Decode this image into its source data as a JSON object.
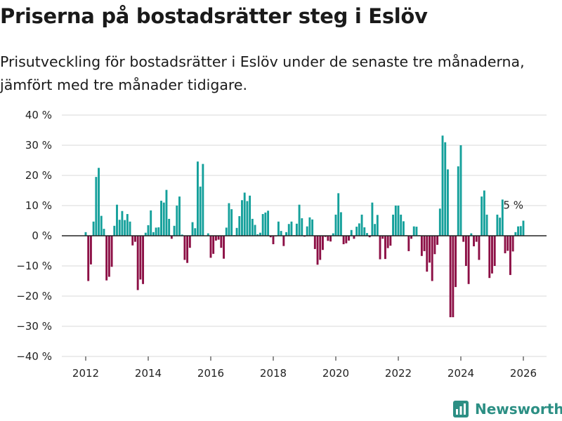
{
  "chart_data": {
    "type": "bar",
    "title": "Priserna på bostadsrätter steg i Eslöv",
    "subtitle": "Prisutveckling för bostadsrätter i Eslöv under de senaste tre månaderna, jämfört med tre månader tidigare.",
    "xlabel": "",
    "ylabel": "",
    "ylim": [
      -40,
      40
    ],
    "yticks": [
      40,
      30,
      20,
      10,
      0,
      -10,
      -20,
      -30,
      -40
    ],
    "ytick_labels": [
      "40 %",
      "30 %",
      "20 %",
      "10 %",
      "0 %",
      "−10 %",
      "−20 %",
      "−30 %",
      "−40 %"
    ],
    "xlim": [
      2011.5,
      2026.5
    ],
    "xticks": [
      2012,
      2014,
      2016,
      2018,
      2020,
      2022,
      2024,
      2026
    ],
    "xtick_labels": [
      "2012",
      "2014",
      "2016",
      "2018",
      "2020",
      "2022",
      "2024",
      "2026"
    ],
    "start": 2012.0,
    "step": 0.08333,
    "values": [
      1.2,
      -15,
      -9.5,
      4.7,
      19.5,
      22.5,
      6.6,
      2.3,
      -14.8,
      -13.6,
      -10.3,
      3.3,
      10.3,
      5.3,
      8.2,
      5.2,
      7.2,
      4.7,
      -3.2,
      -2.0,
      -18,
      -14.5,
      -16,
      1,
      3.5,
      8.4,
      1.2,
      2.7,
      2.8,
      11.6,
      11,
      15.2,
      5.6,
      -1,
      3.3,
      10,
      13,
      0.4,
      -8,
      -9,
      -4,
      4.5,
      2.5,
      24.6,
      16.3,
      23.8,
      0.1,
      0.8,
      -7.3,
      -6,
      -1.6,
      -1.3,
      -4,
      -7.6,
      2.7,
      10.8,
      8.8,
      0.2,
      2.6,
      6.5,
      11.8,
      14.3,
      11.5,
      13.3,
      5.6,
      3.6,
      0.5,
      1,
      7.2,
      7.7,
      8.3,
      -0.5,
      -2.8,
      -0.2,
      4.7,
      1.6,
      -3.4,
      1.2,
      3.9,
      4.7,
      0.2,
      4,
      10.3,
      5.8,
      -0.3,
      3.1,
      6.1,
      5.4,
      -4.4,
      -9.6,
      -8,
      -4.7,
      -0.4,
      -1.7,
      -1.9,
      0.8,
      7,
      14.1,
      7.8,
      -2.8,
      -2.5,
      -1.6,
      1.9,
      -1,
      3,
      4.1,
      7,
      2.8,
      0.9,
      -0.5,
      11,
      3.9,
      6.9,
      -7.8,
      -1,
      -7.7,
      -4.1,
      -3.3,
      7,
      10,
      10,
      7,
      4.8,
      0.2,
      -5.1,
      -1,
      3.1,
      3,
      0.2,
      -6.7,
      -5.1,
      -11.9,
      -8.9,
      -15,
      -6.1,
      -3,
      9,
      33.2,
      31,
      22,
      -27,
      -27,
      -17,
      23,
      30,
      -2,
      -10,
      -16,
      0.8,
      -3.5,
      -2,
      -8,
      13,
      15,
      7,
      -14,
      -12.5,
      -10,
      7,
      6,
      12,
      -5.8,
      -5,
      -13,
      -5.2,
      1.2,
      3.1,
      3.2,
      5
    ],
    "last_value_label": "5 %",
    "positive_color": "#14a09b",
    "negative_color": "#8c0f45",
    "grid": true,
    "brand": "Newsworthy"
  }
}
